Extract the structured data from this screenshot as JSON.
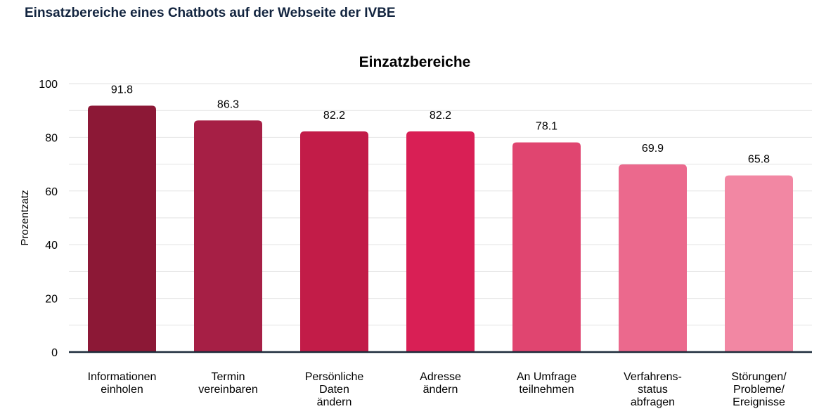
{
  "page": {
    "heading": "Einsatzbereiche eines Chatbots auf der Webseite der IVBE"
  },
  "chart_data": {
    "type": "bar",
    "title": "Einzatzbereiche",
    "xlabel": "",
    "ylabel": "Prozentzatz",
    "ylim": [
      0,
      100
    ],
    "yticks": [
      0,
      20,
      40,
      60,
      80,
      100
    ],
    "grid": true,
    "legend": "none",
    "categories": [
      [
        "Informationen",
        "einholen"
      ],
      [
        "Termin",
        "vereinbaren"
      ],
      [
        "Persönliche",
        "Daten",
        "ändern"
      ],
      [
        "Adresse",
        "ändern"
      ],
      [
        "An Umfrage",
        "teilnehmen"
      ],
      [
        "Verfahrens-",
        "status",
        "abfragen"
      ],
      [
        "Störungen/",
        "Probleme/",
        "Ereignisse"
      ]
    ],
    "values": [
      91.8,
      86.3,
      82.2,
      82.2,
      78.1,
      69.9,
      65.8
    ],
    "colors": [
      "#8c1836",
      "#a61f45",
      "#c21c48",
      "#d91f55",
      "#e04570",
      "#eb698d",
      "#f287a3"
    ]
  }
}
